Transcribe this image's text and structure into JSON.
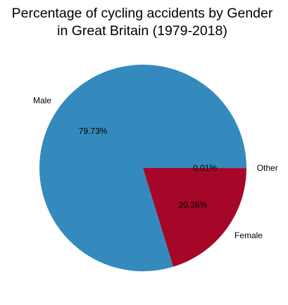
{
  "chart_data": {
    "type": "pie",
    "title": [
      "Percentage of cycling accidents by Gender",
      "in Great Britain (1979-2018)"
    ],
    "slices": [
      {
        "label": "Male",
        "value": 79.73,
        "pct_label": "79.73%",
        "color": "#348abd"
      },
      {
        "label": "Female",
        "value": 20.26,
        "pct_label": "20.26%",
        "color": "#a60628"
      },
      {
        "label": "Other",
        "value": 0.01,
        "pct_label": "0.01%",
        "color": "#7a68a6"
      }
    ]
  }
}
